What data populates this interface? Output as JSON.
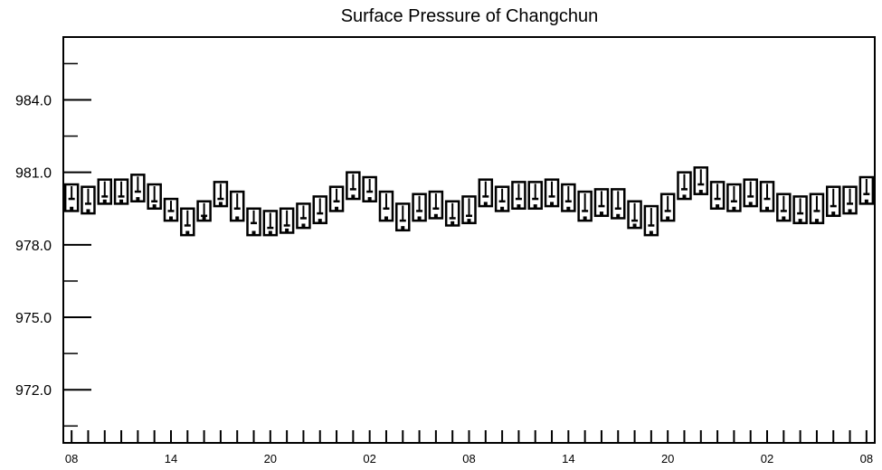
{
  "chart_data": {
    "type": "box",
    "title": "Surface Pressure of Changchun",
    "xlabel": "",
    "ylabel": "",
    "ylim": [
      969.8,
      986.6
    ],
    "y_ticks": [
      972.0,
      975.0,
      978.0,
      981.0,
      984.0
    ],
    "y_tick_labels": [
      "972.0",
      "975.0",
      "978.0",
      "981.0",
      "984.0"
    ],
    "x_tick_labels": [
      "08",
      "14",
      "20",
      "02",
      "08",
      "14",
      "20",
      "02",
      "08"
    ],
    "x_tick_hours": [
      0,
      6,
      12,
      18,
      24,
      30,
      36,
      42,
      48
    ],
    "x_range_hours": [
      -0.5,
      48.5
    ],
    "grid": false,
    "legend": "none",
    "series": [
      {
        "hours": [
          0,
          1,
          2,
          3,
          4,
          5,
          6,
          7,
          8,
          9,
          10,
          11,
          12,
          13,
          14,
          15,
          16,
          17,
          18,
          19,
          20,
          21,
          22,
          23,
          24,
          25,
          26,
          27,
          28,
          29,
          30,
          31,
          32,
          33,
          34,
          35,
          36,
          37,
          38,
          39,
          40,
          41,
          42,
          43,
          44,
          45,
          46,
          47,
          48
        ],
        "box_top": [
          980.5,
          980.4,
          980.7,
          980.7,
          980.9,
          980.5,
          979.9,
          979.5,
          979.8,
          980.6,
          980.2,
          979.5,
          979.4,
          979.5,
          979.7,
          980.0,
          980.4,
          981.0,
          980.8,
          980.2,
          979.7,
          980.1,
          980.2,
          979.8,
          980.0,
          980.7,
          980.4,
          980.6,
          980.6,
          980.7,
          980.5,
          980.2,
          980.3,
          980.3,
          979.8,
          979.6,
          980.1,
          981.0,
          981.2,
          980.6,
          980.5,
          980.7,
          980.6,
          980.1,
          980.0,
          980.1,
          980.4,
          980.4,
          980.8
        ],
        "box_bottom": [
          979.4,
          979.3,
          979.7,
          979.7,
          979.8,
          979.5,
          979.0,
          978.4,
          979.0,
          979.6,
          979.0,
          978.4,
          978.4,
          978.5,
          978.7,
          978.9,
          979.4,
          979.9,
          979.8,
          979.0,
          978.6,
          979.0,
          979.1,
          978.8,
          978.9,
          979.6,
          979.4,
          979.5,
          979.5,
          979.6,
          979.4,
          979.0,
          979.2,
          979.1,
          978.7,
          978.4,
          979.0,
          979.9,
          980.1,
          979.5,
          979.4,
          979.6,
          979.4,
          979.0,
          978.9,
          978.9,
          979.2,
          979.3,
          979.7
        ],
        "median": [
          979.9,
          979.7,
          980.0,
          980.0,
          980.2,
          979.8,
          979.4,
          978.8,
          979.2,
          979.9,
          979.5,
          978.9,
          978.7,
          978.8,
          979.1,
          979.3,
          979.8,
          980.3,
          980.2,
          979.5,
          979.0,
          979.4,
          979.5,
          979.1,
          979.2,
          980.0,
          979.8,
          979.9,
          979.9,
          980.0,
          979.8,
          979.4,
          979.6,
          979.5,
          979.0,
          978.8,
          979.4,
          980.3,
          980.5,
          979.9,
          979.8,
          980.0,
          979.9,
          979.4,
          979.3,
          979.4,
          979.6,
          979.7,
          980.1
        ],
        "mean": [
          979.5,
          979.4,
          979.8,
          979.8,
          979.9,
          979.6,
          979.1,
          978.5,
          979.1,
          979.7,
          979.1,
          978.5,
          978.5,
          978.6,
          978.8,
          979.0,
          979.5,
          980.0,
          979.9,
          979.1,
          978.7,
          979.1,
          979.2,
          978.9,
          979.0,
          979.7,
          979.5,
          979.6,
          979.6,
          979.7,
          979.5,
          979.1,
          979.3,
          979.2,
          978.8,
          978.5,
          979.1,
          980.0,
          980.2,
          979.6,
          979.5,
          979.7,
          979.5,
          979.1,
          979.0,
          979.0,
          979.3,
          979.4,
          979.8
        ]
      }
    ]
  }
}
